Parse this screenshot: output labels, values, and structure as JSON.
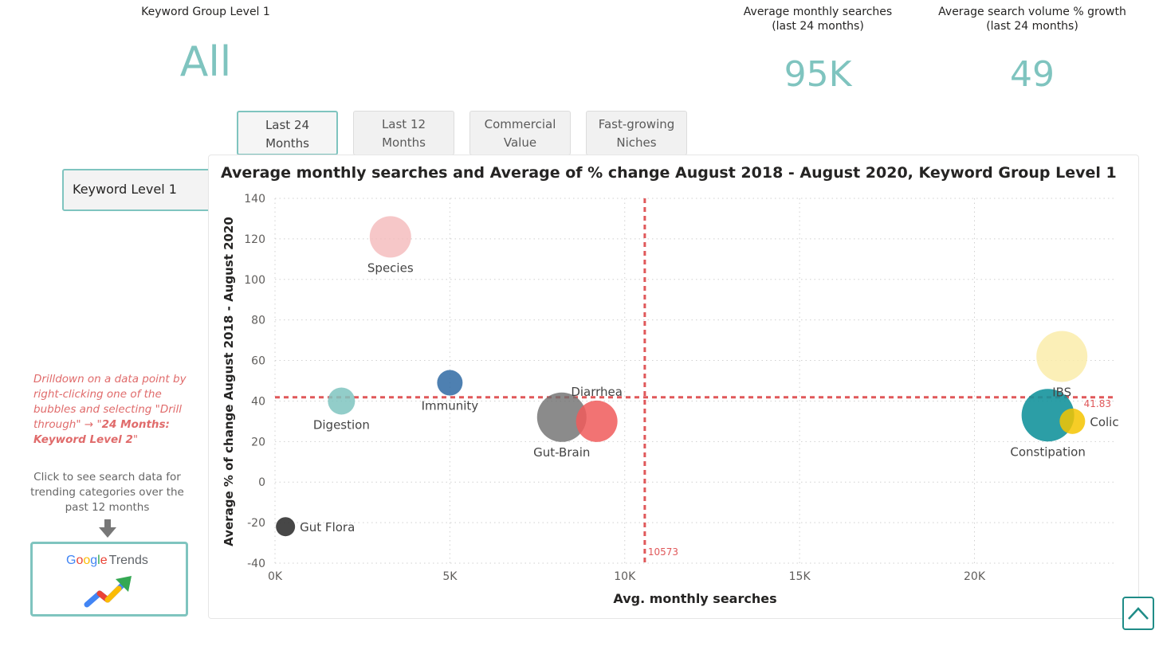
{
  "kpis": {
    "keyword_group": {
      "label": "Keyword Group Level 1",
      "value": "All"
    },
    "avg_searches": {
      "label": "Average monthly searches\n(last 24 months)",
      "value": "95K"
    },
    "avg_growth": {
      "label": "Average search volume % growth\n(last 24 months)",
      "value": "49"
    }
  },
  "tabs": [
    {
      "label": "Last 24\nMonths",
      "active": true
    },
    {
      "label": "Last 12\nMonths",
      "active": false
    },
    {
      "label": "Commercial\nValue",
      "active": false
    },
    {
      "label": "Fast-growing\nNiches",
      "active": false
    }
  ],
  "keyword_level_button": "Keyword Level 1",
  "drill_note": {
    "text": "Drilldown on a data point by right-clicking one of the bubbles and selecting \"Drill through\" → \"",
    "bold": "24 Months: Keyword Level 2",
    "end": "\""
  },
  "trends_hint": "Click to see search data for trending categories  over the past 12 months",
  "google_trends": {
    "google": "Google",
    "trends": "Trends",
    "colors": [
      "#4285F4",
      "#EA4335",
      "#FBBC05",
      "#4285F4",
      "#34A853",
      "#EA4335"
    ]
  },
  "chart_data": {
    "type": "scatter",
    "title": "Average monthly searches and Average of % change August 2018 - August 2020, Keyword Group Level 1",
    "xlabel": "Avg. monthly searches",
    "ylabel": "Average % of change August 2018 - August 2020",
    "xlim": [
      0,
      24000
    ],
    "ylim": [
      -40,
      140
    ],
    "x_ticks": [
      0,
      5000,
      10000,
      15000,
      20000
    ],
    "x_tick_labels": [
      "0K",
      "5K",
      "10K",
      "15K",
      "20K"
    ],
    "y_ticks": [
      -40,
      -20,
      0,
      20,
      40,
      60,
      80,
      100,
      120,
      140
    ],
    "grid": true,
    "ref_x": {
      "value": 10573,
      "label": "10573",
      "color": "#e0585a"
    },
    "ref_y": {
      "value": 41.83,
      "label": "41.83",
      "color": "#e0585a"
    },
    "points": [
      {
        "name": "Species",
        "x": 3300,
        "y": 121,
        "size": 26,
        "color": "#f4b9ba",
        "opacity": 0.8,
        "label_pos": "below"
      },
      {
        "name": "Immunity",
        "x": 5000,
        "y": 49,
        "size": 16,
        "color": "#2f6aa3",
        "opacity": 0.85,
        "label_pos": "below"
      },
      {
        "name": "Digestion",
        "x": 1900,
        "y": 40,
        "size": 17,
        "color": "#7fc4bf",
        "opacity": 0.85,
        "label_pos": "below"
      },
      {
        "name": "Gut-Brain",
        "x": 8200,
        "y": 32,
        "size": 31,
        "color": "#6e6e6e",
        "opacity": 0.8,
        "label_pos": "below"
      },
      {
        "name": "Diarrhea",
        "x": 9200,
        "y": 30,
        "size": 26,
        "color": "#f05a5a",
        "opacity": 0.85,
        "label_pos": "above"
      },
      {
        "name": "Gut Flora",
        "x": 300,
        "y": -22,
        "size": 12,
        "color": "#333333",
        "opacity": 0.9,
        "label_pos": "right"
      },
      {
        "name": "IBS",
        "x": 22500,
        "y": 62,
        "size": 32,
        "color": "#faecaa",
        "opacity": 0.85,
        "label_pos": "below"
      },
      {
        "name": "Constipation",
        "x": 22100,
        "y": 33,
        "size": 33,
        "color": "#15949c",
        "opacity": 0.9,
        "label_pos": "below"
      },
      {
        "name": "Colic",
        "x": 22800,
        "y": 30,
        "size": 16,
        "color": "#f5c400",
        "opacity": 0.85,
        "label_pos": "right"
      }
    ]
  }
}
